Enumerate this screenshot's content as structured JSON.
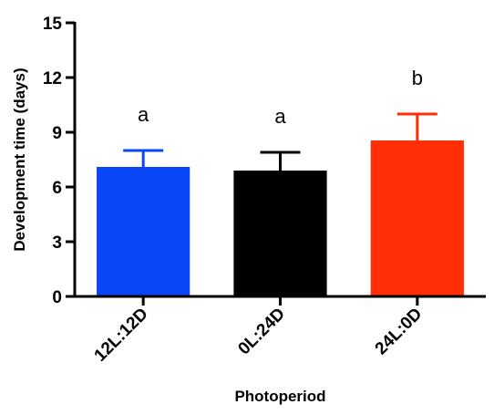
{
  "chart_data": {
    "type": "bar",
    "categories": [
      "12L:12D",
      "0L:24D",
      "24L:0D"
    ],
    "values": [
      7.1,
      6.9,
      8.55
    ],
    "errors": [
      0.9,
      1.0,
      1.45
    ],
    "significance": [
      "a",
      "a",
      "b"
    ],
    "colors": [
      "#0a46f5",
      "#000000",
      "#ff2e05"
    ],
    "xlabel": "Photoperiod",
    "ylabel": "Development time (days)",
    "ylim": [
      0,
      15
    ],
    "yticks": [
      0,
      3,
      6,
      9,
      12,
      15
    ],
    "grid": false
  }
}
